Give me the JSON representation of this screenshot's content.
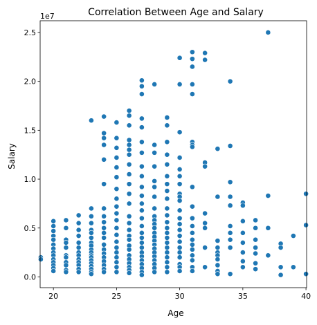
{
  "chart_data": {
    "type": "scatter",
    "title": "Correlation Between Age and Salary",
    "xlabel": "Age",
    "ylabel": "Salary",
    "y_offset_text": "1e7",
    "xlim": [
      18.95,
      40.05
    ],
    "ylim": [
      -0.11,
      2.62
    ],
    "y_unit_multiplier": 10000000,
    "xticks": [
      20,
      25,
      30,
      35,
      40
    ],
    "yticks": [
      0.0,
      0.5,
      1.0,
      1.5,
      2.0,
      2.5
    ],
    "ytick_labels": [
      "0.0",
      "0.5",
      "1.0",
      "1.5",
      "2.0",
      "2.5"
    ],
    "grid": false,
    "legend": null,
    "point_color": "#1f77b4",
    "points": [
      [
        19,
        0.2
      ],
      [
        19,
        0.18
      ],
      [
        20,
        0.57
      ],
      [
        20,
        0.52
      ],
      [
        20,
        0.47
      ],
      [
        20,
        0.42
      ],
      [
        20,
        0.38
      ],
      [
        20,
        0.33
      ],
      [
        20,
        0.29
      ],
      [
        20,
        0.25
      ],
      [
        20,
        0.22
      ],
      [
        20,
        0.18
      ],
      [
        20,
        0.15
      ],
      [
        20,
        0.12
      ],
      [
        20,
        0.09
      ],
      [
        20,
        0.06
      ],
      [
        21,
        0.58
      ],
      [
        21,
        0.5
      ],
      [
        21,
        0.38
      ],
      [
        21,
        0.35
      ],
      [
        21,
        0.3
      ],
      [
        21,
        0.22
      ],
      [
        21,
        0.2
      ],
      [
        21,
        0.15
      ],
      [
        21,
        0.12
      ],
      [
        21,
        0.07
      ],
      [
        21,
        0.05
      ],
      [
        22,
        0.63
      ],
      [
        22,
        0.55
      ],
      [
        22,
        0.48
      ],
      [
        22,
        0.42
      ],
      [
        22,
        0.35
      ],
      [
        22,
        0.3
      ],
      [
        22,
        0.25
      ],
      [
        22,
        0.22
      ],
      [
        22,
        0.18
      ],
      [
        22,
        0.15
      ],
      [
        22,
        0.12
      ],
      [
        22,
        0.08
      ],
      [
        22,
        0.05
      ],
      [
        23,
        1.6
      ],
      [
        23,
        0.7
      ],
      [
        23,
        0.62
      ],
      [
        23,
        0.55
      ],
      [
        23,
        0.48
      ],
      [
        23,
        0.45
      ],
      [
        23,
        0.4
      ],
      [
        23,
        0.35
      ],
      [
        23,
        0.32
      ],
      [
        23,
        0.28
      ],
      [
        23,
        0.25
      ],
      [
        23,
        0.22
      ],
      [
        23,
        0.2
      ],
      [
        23,
        0.17
      ],
      [
        23,
        0.14
      ],
      [
        23,
        0.11
      ],
      [
        23,
        0.08
      ],
      [
        23,
        0.05
      ],
      [
        23,
        0.03
      ],
      [
        24,
        1.64
      ],
      [
        24,
        1.47
      ],
      [
        24,
        1.42
      ],
      [
        24,
        1.35
      ],
      [
        24,
        1.2
      ],
      [
        24,
        0.95
      ],
      [
        24,
        0.7
      ],
      [
        24,
        0.62
      ],
      [
        24,
        0.56
      ],
      [
        24,
        0.5
      ],
      [
        24,
        0.45
      ],
      [
        24,
        0.4
      ],
      [
        24,
        0.33
      ],
      [
        24,
        0.28
      ],
      [
        24,
        0.24
      ],
      [
        24,
        0.2
      ],
      [
        24,
        0.16
      ],
      [
        24,
        0.12
      ],
      [
        24,
        0.08
      ],
      [
        24,
        0.05
      ],
      [
        25,
        1.58
      ],
      [
        25,
        1.42
      ],
      [
        25,
        1.32
      ],
      [
        25,
        1.22
      ],
      [
        25,
        1.12
      ],
      [
        25,
        1.02
      ],
      [
        25,
        0.9
      ],
      [
        25,
        0.8
      ],
      [
        25,
        0.72
      ],
      [
        25,
        0.65
      ],
      [
        25,
        0.58
      ],
      [
        25,
        0.5
      ],
      [
        25,
        0.43
      ],
      [
        25,
        0.36
      ],
      [
        25,
        0.3
      ],
      [
        25,
        0.25
      ],
      [
        25,
        0.2
      ],
      [
        25,
        0.15
      ],
      [
        25,
        0.1
      ],
      [
        25,
        0.05
      ],
      [
        26,
        1.7
      ],
      [
        26,
        1.65
      ],
      [
        26,
        1.55
      ],
      [
        26,
        1.4
      ],
      [
        26,
        1.35
      ],
      [
        26,
        1.3
      ],
      [
        26,
        1.25
      ],
      [
        26,
        1.15
      ],
      [
        26,
        1.05
      ],
      [
        26,
        0.95
      ],
      [
        26,
        0.85
      ],
      [
        26,
        0.75
      ],
      [
        26,
        0.62
      ],
      [
        26,
        0.55
      ],
      [
        26,
        0.48
      ],
      [
        26,
        0.42
      ],
      [
        26,
        0.38
      ],
      [
        26,
        0.32
      ],
      [
        26,
        0.28
      ],
      [
        26,
        0.22
      ],
      [
        26,
        0.18
      ],
      [
        26,
        0.14
      ],
      [
        26,
        0.1
      ],
      [
        26,
        0.07
      ],
      [
        26,
        0.04
      ],
      [
        27,
        2.01
      ],
      [
        27,
        1.95
      ],
      [
        27,
        1.87
      ],
      [
        27,
        1.62
      ],
      [
        27,
        1.53
      ],
      [
        27,
        1.38
      ],
      [
        27,
        1.27
      ],
      [
        27,
        1.13
      ],
      [
        27,
        1.03
      ],
      [
        27,
        0.92
      ],
      [
        27,
        0.83
      ],
      [
        27,
        0.75
      ],
      [
        27,
        0.68
      ],
      [
        27,
        0.6
      ],
      [
        27,
        0.52
      ],
      [
        27,
        0.45
      ],
      [
        27,
        0.4
      ],
      [
        27,
        0.35
      ],
      [
        27,
        0.3
      ],
      [
        27,
        0.25
      ],
      [
        27,
        0.21
      ],
      [
        27,
        0.17
      ],
      [
        27,
        0.13
      ],
      [
        27,
        0.09
      ],
      [
        27,
        0.05
      ],
      [
        27,
        0.02
      ],
      [
        28,
        1.97
      ],
      [
        28,
        1.35
      ],
      [
        28,
        1.27
      ],
      [
        28,
        1.13
      ],
      [
        28,
        0.98
      ],
      [
        28,
        0.92
      ],
      [
        28,
        0.82
      ],
      [
        28,
        0.7
      ],
      [
        28,
        0.62
      ],
      [
        28,
        0.58
      ],
      [
        28,
        0.54
      ],
      [
        28,
        0.5
      ],
      [
        28,
        0.45
      ],
      [
        28,
        0.41
      ],
      [
        28,
        0.37
      ],
      [
        28,
        0.33
      ],
      [
        28,
        0.29
      ],
      [
        28,
        0.25
      ],
      [
        28,
        0.21
      ],
      [
        28,
        0.17
      ],
      [
        28,
        0.13
      ],
      [
        28,
        0.09
      ],
      [
        28,
        0.05
      ],
      [
        29,
        1.63
      ],
      [
        29,
        1.55
      ],
      [
        29,
        1.38
      ],
      [
        29,
        1.25
      ],
      [
        29,
        1.15
      ],
      [
        29,
        1.03
      ],
      [
        29,
        0.95
      ],
      [
        29,
        0.88
      ],
      [
        29,
        0.8
      ],
      [
        29,
        0.7
      ],
      [
        29,
        0.63
      ],
      [
        29,
        0.56
      ],
      [
        29,
        0.5
      ],
      [
        29,
        0.45
      ],
      [
        29,
        0.4
      ],
      [
        29,
        0.35
      ],
      [
        29,
        0.3
      ],
      [
        29,
        0.25
      ],
      [
        29,
        0.2
      ],
      [
        29,
        0.15
      ],
      [
        29,
        0.1
      ],
      [
        29,
        0.05
      ],
      [
        30,
        2.24
      ],
      [
        30,
        1.97
      ],
      [
        30,
        1.48
      ],
      [
        30,
        1.22
      ],
      [
        30,
        1.1
      ],
      [
        30,
        1.03
      ],
      [
        30,
        0.95
      ],
      [
        30,
        0.85
      ],
      [
        30,
        0.82
      ],
      [
        30,
        0.78
      ],
      [
        30,
        0.68
      ],
      [
        30,
        0.6
      ],
      [
        30,
        0.54
      ],
      [
        30,
        0.48
      ],
      [
        30,
        0.42
      ],
      [
        30,
        0.36
      ],
      [
        30,
        0.3
      ],
      [
        30,
        0.25
      ],
      [
        30,
        0.2
      ],
      [
        30,
        0.13
      ],
      [
        30,
        0.1
      ],
      [
        30,
        0.06
      ],
      [
        31,
        2.3
      ],
      [
        31,
        2.23
      ],
      [
        31,
        2.15
      ],
      [
        31,
        1.97
      ],
      [
        31,
        1.87
      ],
      [
        31,
        1.38
      ],
      [
        31,
        1.35
      ],
      [
        31,
        1.33
      ],
      [
        31,
        0.92
      ],
      [
        31,
        0.72
      ],
      [
        31,
        0.6
      ],
      [
        31,
        0.52
      ],
      [
        31,
        0.45
      ],
      [
        31,
        0.38
      ],
      [
        31,
        0.33
      ],
      [
        31,
        0.28
      ],
      [
        31,
        0.22
      ],
      [
        31,
        0.17
      ],
      [
        31,
        0.1
      ],
      [
        31,
        0.06
      ],
      [
        32,
        2.29
      ],
      [
        32,
        2.22
      ],
      [
        32,
        1.17
      ],
      [
        32,
        1.13
      ],
      [
        32,
        0.65
      ],
      [
        32,
        0.55
      ],
      [
        32,
        0.5
      ],
      [
        32,
        0.3
      ],
      [
        32,
        0.1
      ],
      [
        33,
        1.31
      ],
      [
        33,
        0.82
      ],
      [
        33,
        0.37
      ],
      [
        33,
        0.3
      ],
      [
        33,
        0.25
      ],
      [
        33,
        0.22
      ],
      [
        33,
        0.18
      ],
      [
        33,
        0.12
      ],
      [
        33,
        0.06
      ],
      [
        33,
        0.03
      ],
      [
        34,
        2.0
      ],
      [
        34,
        1.34
      ],
      [
        34,
        0.97
      ],
      [
        34,
        0.82
      ],
      [
        34,
        0.73
      ],
      [
        34,
        0.52
      ],
      [
        34,
        0.45
      ],
      [
        34,
        0.38
      ],
      [
        34,
        0.3
      ],
      [
        34,
        0.03
      ],
      [
        35,
        0.76
      ],
      [
        35,
        0.73
      ],
      [
        35,
        0.57
      ],
      [
        35,
        0.45
      ],
      [
        35,
        0.35
      ],
      [
        35,
        0.25
      ],
      [
        35,
        0.16
      ],
      [
        35,
        0.1
      ],
      [
        36,
        0.58
      ],
      [
        36,
        0.5
      ],
      [
        36,
        0.38
      ],
      [
        36,
        0.3
      ],
      [
        36,
        0.24
      ],
      [
        36,
        0.14
      ],
      [
        36,
        0.08
      ],
      [
        37,
        2.5
      ],
      [
        37,
        0.83
      ],
      [
        37,
        0.5
      ],
      [
        37,
        0.22
      ],
      [
        38,
        0.34
      ],
      [
        38,
        0.3
      ],
      [
        38,
        0.1
      ],
      [
        38,
        0.02
      ],
      [
        39,
        0.42
      ],
      [
        39,
        0.1
      ],
      [
        40,
        0.85
      ],
      [
        40,
        0.53
      ],
      [
        40,
        0.03
      ]
    ]
  }
}
